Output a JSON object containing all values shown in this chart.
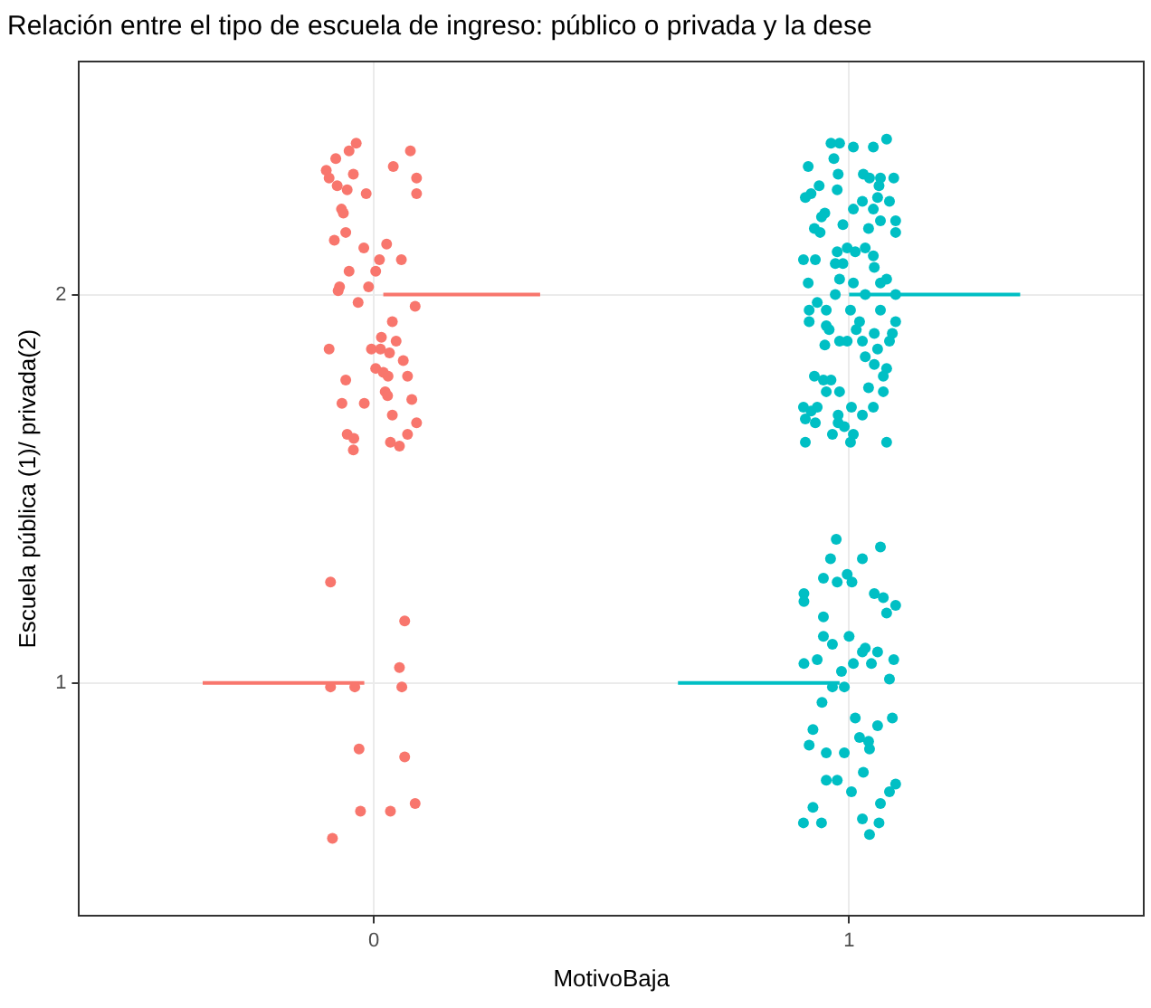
{
  "chart_data": {
    "type": "scatter",
    "title": "Relación entre el tipo de escuela de ingreso: público o privada y la dese",
    "xlabel": "MotivoBaja",
    "ylabel": "Escuela pública (1)/ privada(2)",
    "xlim": [
      -0.62,
      1.62
    ],
    "xticks": [
      0,
      1
    ],
    "ylim": [
      0.4,
      2.6
    ],
    "yticks": [
      1,
      2
    ],
    "grid": true,
    "legend": false,
    "marker": "circle",
    "series": [
      {
        "color": "#f8766d",
        "x": [
          -0.037,
          0.077,
          -0.052,
          -0.08,
          0.041,
          -0.1,
          -0.043,
          -0.094,
          0.09,
          -0.077,
          -0.056,
          0.09,
          -0.016,
          -0.068,
          -0.064,
          -0.059,
          -0.083,
          0.027,
          -0.021,
          0.012,
          0.058,
          -0.052,
          0.004,
          -0.072,
          -0.011,
          -0.075,
          -0.033,
          0.087,
          0.039,
          0.016,
          0.047,
          -0.094,
          -0.005,
          0.014,
          0.033,
          0.062,
          0.004,
          0.02,
          0.03,
          0.071,
          -0.059,
          0.024,
          0.029,
          0.08,
          -0.067,
          -0.02,
          0.039,
          0.09,
          0.071,
          -0.056,
          -0.042,
          0.035,
          0.054,
          -0.043,
          -0.091,
          0.065,
          0.054,
          -0.091,
          -0.04,
          0.059,
          -0.031,
          0.065,
          0.087,
          -0.028,
          0.035,
          -0.087
        ],
        "values": [
          2.39,
          2.37,
          2.37,
          2.35,
          2.33,
          2.32,
          2.31,
          2.3,
          2.3,
          2.28,
          2.27,
          2.26,
          2.26,
          2.22,
          2.21,
          2.16,
          2.14,
          2.13,
          2.12,
          2.09,
          2.09,
          2.06,
          2.06,
          2.02,
          2.02,
          2.01,
          1.98,
          1.97,
          1.93,
          1.89,
          1.88,
          1.86,
          1.86,
          1.86,
          1.85,
          1.83,
          1.81,
          1.8,
          1.79,
          1.79,
          1.78,
          1.75,
          1.74,
          1.73,
          1.72,
          1.72,
          1.69,
          1.67,
          1.64,
          1.64,
          1.63,
          1.62,
          1.61,
          1.6,
          1.26,
          1.16,
          1.04,
          0.99,
          0.99,
          0.99,
          0.83,
          0.81,
          0.69,
          0.67,
          0.67,
          0.6
        ]
      },
      {
        "color": "#00bfc4",
        "x": [
          0.962,
          0.98,
          1.009,
          1.051,
          1.079,
          0.968,
          0.914,
          0.977,
          1.03,
          1.043,
          1.066,
          1.094,
          0.937,
          0.975,
          1.063,
          0.908,
          0.92,
          1.028,
          1.06,
          1.085,
          1.009,
          0.949,
          1.051,
          0.987,
          0.942,
          1.066,
          1.098,
          0.927,
          1.041,
          0.939,
          1.098,
          0.996,
          0.975,
          1.034,
          1.013,
          1.051,
          0.904,
          0.929,
          0.971,
          0.987,
          1.053,
          0.914,
          0.98,
          1.009,
          1.079,
          1.066,
          0.971,
          0.933,
          1.034,
          1.098,
          0.916,
          0.952,
          1.003,
          1.066,
          0.916,
          0.952,
          1.022,
          1.098,
          0.958,
          1.015,
          1.053,
          1.091,
          0.98,
          0.996,
          1.028,
          0.949,
          1.085,
          1.06,
          1.034,
          1.053,
          1.079,
          0.927,
          0.946,
          0.962,
          1.072,
          0.952,
          0.98,
          1.041,
          1.072,
          0.904,
          0.933,
          1.005,
          0.92,
          1.051,
          0.977,
          1.028,
          0.908,
          0.929,
          0.99,
          0.977,
          0.965,
          1.009,
          0.908,
          1.003,
          1.079,
          0.973,
          1.066,
          0.961,
          1.028,
          0.946,
          0.975,
          0.996,
          1.006,
          0.905,
          0.905,
          1.053,
          1.072,
          1.098,
          1.079,
          0.946,
          0.946,
          1.0,
          0.965,
          1.034,
          1.06,
          1.028,
          0.905,
          0.933,
          1.009,
          1.047,
          1.094,
          0.984,
          1.085,
          0.965,
          0.99,
          0.943,
          1.013,
          1.091,
          1.06,
          0.924,
          1.022,
          1.041,
          0.916,
          1.043,
          0.952,
          0.99,
          1.03,
          0.952,
          0.975,
          1.005,
          1.098,
          1.085,
          1.066,
          0.924,
          0.904,
          0.942,
          1.028,
          1.063,
          1.043
        ],
        "values": [
          2.39,
          2.39,
          2.38,
          2.38,
          2.4,
          2.35,
          2.33,
          2.31,
          2.31,
          2.3,
          2.3,
          2.3,
          2.28,
          2.27,
          2.28,
          2.25,
          2.26,
          2.24,
          2.25,
          2.24,
          2.22,
          2.21,
          2.22,
          2.18,
          2.2,
          2.19,
          2.19,
          2.17,
          2.17,
          2.16,
          2.16,
          2.12,
          2.11,
          2.12,
          2.11,
          2.1,
          2.09,
          2.09,
          2.08,
          2.08,
          2.07,
          2.03,
          2.04,
          2.03,
          2.04,
          2.03,
          2.0,
          1.98,
          2.0,
          2.0,
          1.96,
          1.96,
          1.96,
          1.96,
          1.93,
          1.92,
          1.93,
          1.93,
          1.91,
          1.91,
          1.9,
          1.9,
          1.88,
          1.88,
          1.88,
          1.87,
          1.88,
          1.86,
          1.84,
          1.82,
          1.81,
          1.79,
          1.78,
          1.78,
          1.79,
          1.75,
          1.75,
          1.76,
          1.75,
          1.71,
          1.71,
          1.71,
          1.7,
          1.71,
          1.69,
          1.69,
          1.68,
          1.67,
          1.66,
          1.67,
          1.64,
          1.64,
          1.62,
          1.62,
          1.62,
          1.37,
          1.35,
          1.32,
          1.32,
          1.27,
          1.26,
          1.28,
          1.26,
          1.23,
          1.21,
          1.23,
          1.22,
          1.2,
          1.18,
          1.17,
          1.12,
          1.12,
          1.1,
          1.09,
          1.08,
          1.08,
          1.05,
          1.06,
          1.05,
          1.05,
          1.06,
          1.03,
          1.01,
          0.99,
          0.99,
          0.95,
          0.91,
          0.91,
          0.89,
          0.88,
          0.86,
          0.85,
          0.84,
          0.83,
          0.82,
          0.82,
          0.77,
          0.75,
          0.75,
          0.72,
          0.74,
          0.72,
          0.69,
          0.68,
          0.64,
          0.64,
          0.65,
          0.64,
          0.61
        ]
      },
      {
        "type": "line",
        "marker": "none",
        "color": "#f8766d",
        "x": [
          0.02,
          0.35
        ],
        "values": [
          2,
          2
        ]
      },
      {
        "type": "line",
        "marker": "none",
        "color": "#f8766d",
        "x": [
          -0.36,
          -0.02
        ],
        "values": [
          1,
          1
        ]
      },
      {
        "type": "line",
        "marker": "none",
        "color": "#00bfc4",
        "x": [
          1.0,
          1.36
        ],
        "values": [
          2,
          2
        ]
      },
      {
        "type": "line",
        "marker": "none",
        "color": "#00bfc4",
        "x": [
          0.64,
          0.98
        ],
        "values": [
          1,
          1
        ]
      }
    ]
  }
}
